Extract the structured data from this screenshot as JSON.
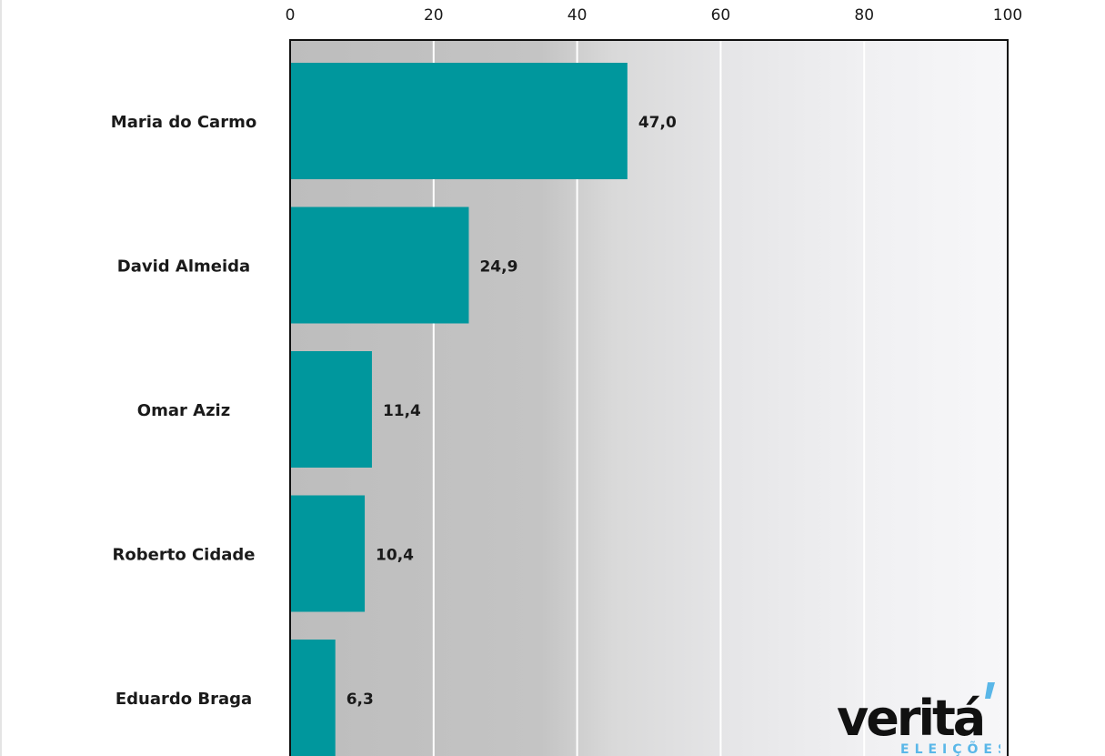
{
  "chart_data": {
    "type": "bar",
    "orientation": "horizontal",
    "categories": [
      "Maria do Carmo",
      "David Almeida",
      "Omar Aziz",
      "Roberto Cidade",
      "Eduardo Braga"
    ],
    "values": [
      47.0,
      24.9,
      11.4,
      10.4,
      6.3
    ],
    "value_labels": [
      "47,0",
      "24,9",
      "11,4",
      "10,4",
      "6,3"
    ],
    "xlim": [
      0,
      100
    ],
    "xticks": [
      0,
      20,
      40,
      60,
      80,
      100
    ],
    "x_axis_position": "top",
    "grid": true,
    "bar_color": "#00979d"
  },
  "logo": {
    "wordmark": "veritá",
    "tagline": "ELEIÇÕES",
    "accent_color": "#5ab7e8"
  }
}
